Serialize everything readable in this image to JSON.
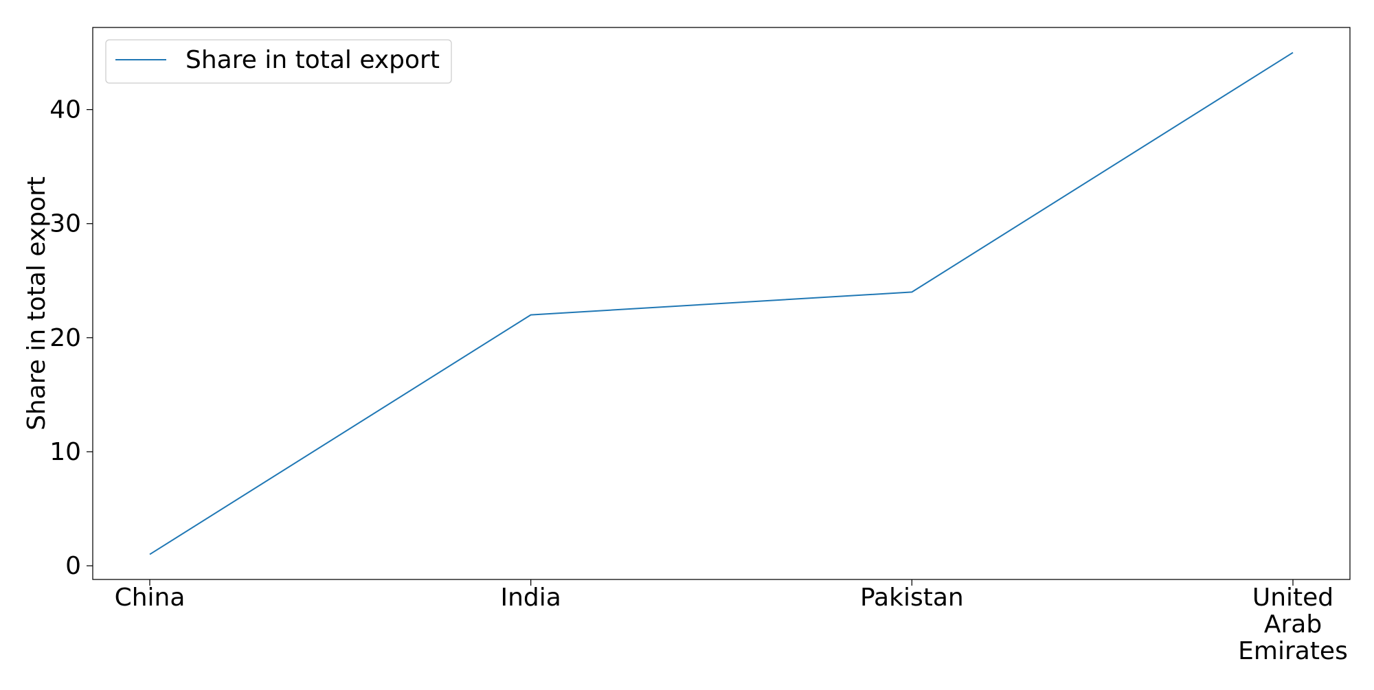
{
  "chart_data": {
    "type": "line",
    "title": "",
    "xlabel": "",
    "ylabel": "Share in total export",
    "categories": [
      "China",
      "India",
      "Pakistan",
      "United\nArab\nEmirates"
    ],
    "series": [
      {
        "name": "Share in total export",
        "values": [
          1,
          22,
          24,
          45
        ],
        "color": "#1f77b4"
      }
    ],
    "ylim": [
      -1.2,
      47.2
    ],
    "yticks": [
      0,
      10,
      20,
      30,
      40
    ],
    "grid": false,
    "legend_position": "top-left"
  }
}
